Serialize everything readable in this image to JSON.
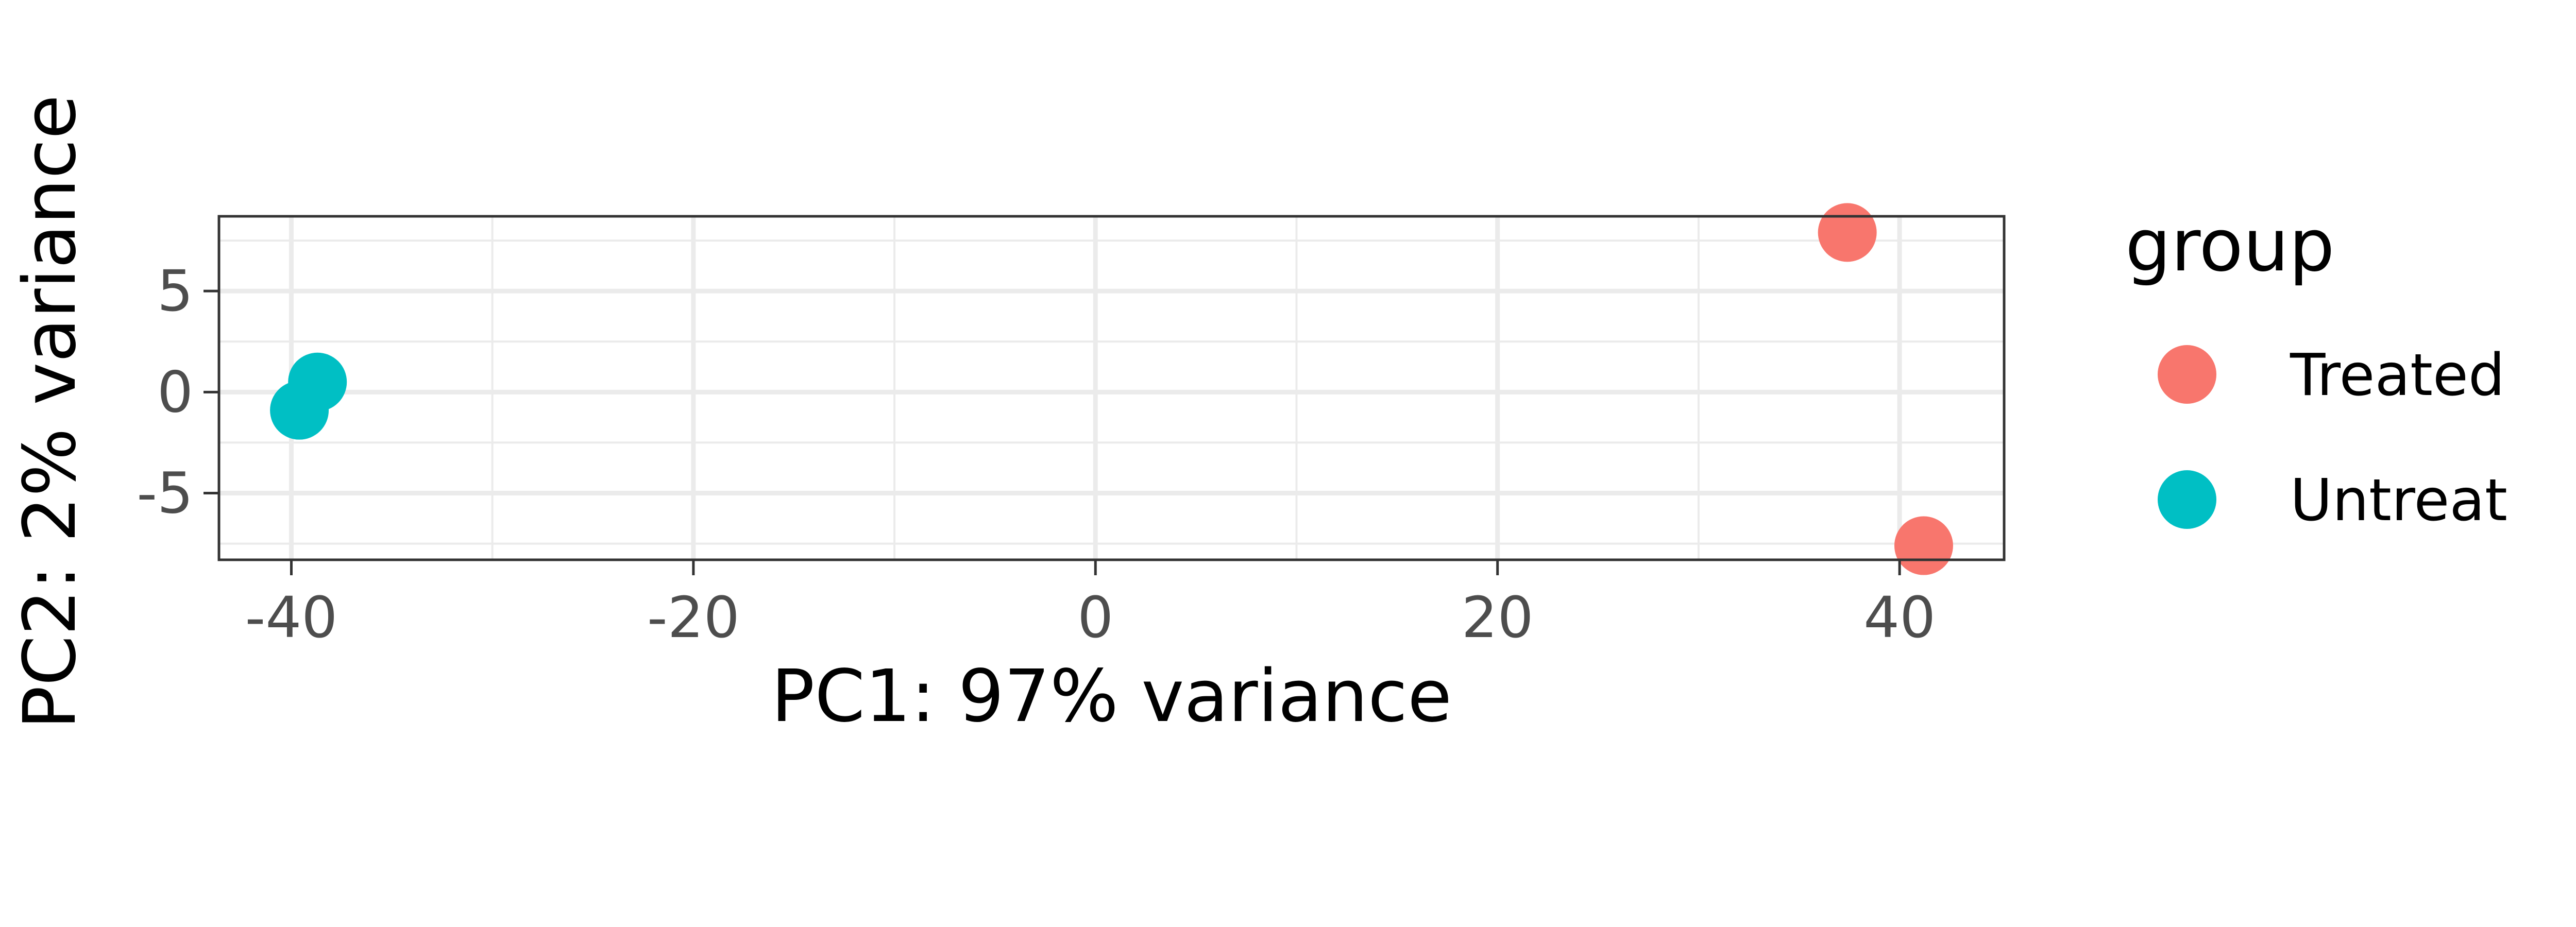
{
  "chart_data": {
    "type": "scatter",
    "title": "",
    "xlabel": "PC1: 97% variance",
    "ylabel": "PC2: 2% variance",
    "xlim": [
      -43.6,
      45.2
    ],
    "ylim": [
      -8.3,
      8.7
    ],
    "x_ticks": [
      -40,
      -20,
      0,
      20,
      40
    ],
    "x_tick_labels": [
      "-40",
      "-20",
      "0",
      "20",
      "40"
    ],
    "y_ticks": [
      -5,
      0,
      5
    ],
    "y_tick_labels": [
      "-5",
      "0",
      "5"
    ],
    "grid": true,
    "legend_title": "group",
    "legend_position": "right",
    "series": [
      {
        "name": "Treated",
        "color": "#F8766D",
        "points": [
          {
            "x": 37.4,
            "y": 7.9
          },
          {
            "x": 41.2,
            "y": -7.6
          }
        ]
      },
      {
        "name": "Untreat",
        "color": "#00BFC4",
        "points": [
          {
            "x": -38.7,
            "y": 0.5
          },
          {
            "x": -39.6,
            "y": -0.9
          }
        ]
      }
    ]
  }
}
